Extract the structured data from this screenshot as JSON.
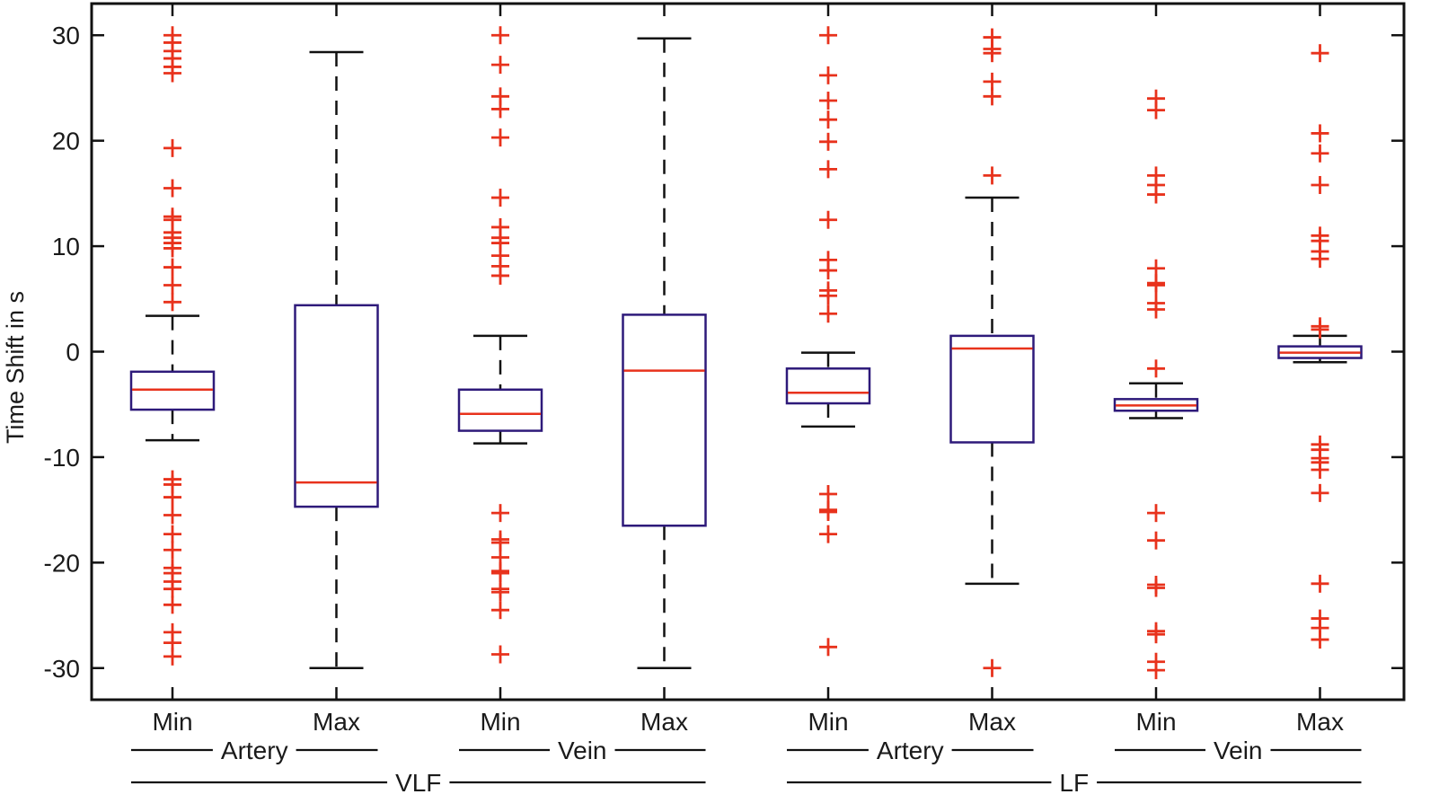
{
  "chart_data": {
    "type": "boxplot",
    "title": "",
    "xlabel": "",
    "ylabel": "Time Shift in s",
    "ylim": [
      -33,
      33
    ],
    "yticks": [
      -30,
      -20,
      -10,
      0,
      10,
      20,
      30
    ],
    "ytick_labels": [
      "-30",
      "-20",
      "-10",
      "0",
      "10",
      "20",
      "30"
    ],
    "categories": [
      "Min",
      "Max",
      "Min",
      "Max",
      "Min",
      "Max",
      "Min",
      "Max"
    ],
    "vessel_groups": [
      {
        "label": "Artery",
        "from": 0,
        "to": 1
      },
      {
        "label": "Vein",
        "from": 2,
        "to": 3
      },
      {
        "label": "Artery",
        "from": 4,
        "to": 5
      },
      {
        "label": "Vein",
        "from": 6,
        "to": 7
      }
    ],
    "band_groups": [
      {
        "label": "VLF",
        "from": 0,
        "to": 3
      },
      {
        "label": "LF",
        "from": 4,
        "to": 7
      }
    ],
    "colors": {
      "box": "#2e1a7a",
      "median": "#e8321c",
      "whisker": "#111111",
      "outlier": "#e8321c",
      "axis": "#111111"
    },
    "boxes": [
      {
        "q1": -5.5,
        "median": -3.6,
        "q3": -1.9,
        "whisker_low": -8.4,
        "whisker_high": 3.4,
        "outliers": [
          30,
          29.3,
          28.5,
          27.8,
          27,
          26.4,
          19.3,
          15.5,
          12.8,
          12.5,
          11.3,
          10.8,
          10.3,
          9.8,
          8,
          6.3,
          4.7,
          -12.1,
          -12.6,
          -13.8,
          -15.5,
          -17.3,
          -18.8,
          -20.5,
          -21,
          -21.8,
          -22.5,
          -24,
          -26.6,
          -27.6,
          -28.9
        ]
      },
      {
        "q1": -14.7,
        "median": -12.4,
        "q3": 4.4,
        "whisker_low": -30,
        "whisker_high": 28.4,
        "outliers": []
      },
      {
        "q1": -7.5,
        "median": -5.9,
        "q3": -3.6,
        "whisker_low": -8.7,
        "whisker_high": 1.5,
        "outliers": [
          30,
          27.2,
          24.2,
          23,
          20.3,
          14.6,
          11.8,
          10.8,
          10.3,
          9.1,
          8.1,
          7.2,
          -15.3,
          -17.8,
          -18.1,
          -19.5,
          -20.8,
          -21,
          -22.5,
          -22.8,
          -24.5,
          -28.7
        ]
      },
      {
        "q1": -16.5,
        "median": -1.8,
        "q3": 3.5,
        "whisker_low": -30,
        "whisker_high": 29.7,
        "outliers": []
      },
      {
        "q1": -4.9,
        "median": -3.9,
        "q3": -1.6,
        "whisker_low": -7.1,
        "whisker_high": -0.1,
        "outliers": [
          30,
          26.2,
          23.8,
          22,
          19.9,
          17.3,
          12.5,
          8.7,
          7.7,
          5.8,
          5.3,
          3.6,
          -13.5,
          -15,
          -15.2,
          -17.3,
          -28
        ]
      },
      {
        "q1": -8.6,
        "median": 0.3,
        "q3": 1.5,
        "whisker_low": -22,
        "whisker_high": 14.6,
        "outliers": [
          29.8,
          28.7,
          28.3,
          25.6,
          24.2,
          16.7,
          -30
        ]
      },
      {
        "q1": -5.6,
        "median": -5.1,
        "q3": -4.5,
        "whisker_low": -6.3,
        "whisker_high": -3,
        "outliers": [
          24,
          22.9,
          16.7,
          15.8,
          14.9,
          7.9,
          6.5,
          6.3,
          4.6,
          4,
          -1.6,
          -15.3,
          -17.9,
          -22.1,
          -22.4,
          -26.5,
          -26.8,
          -29.4,
          -30.2
        ]
      },
      {
        "q1": -0.6,
        "median": -0.1,
        "q3": 0.5,
        "whisker_low": -1,
        "whisker_high": 1.5,
        "outliers": [
          28.3,
          20.7,
          18.8,
          15.8,
          11,
          10.5,
          9.5,
          8.8,
          2.4,
          2.1,
          -8.8,
          -9.3,
          -10.1,
          -10.5,
          -11.2,
          -13.4,
          -22,
          -25.3,
          -26.2,
          -27.3
        ]
      }
    ]
  }
}
